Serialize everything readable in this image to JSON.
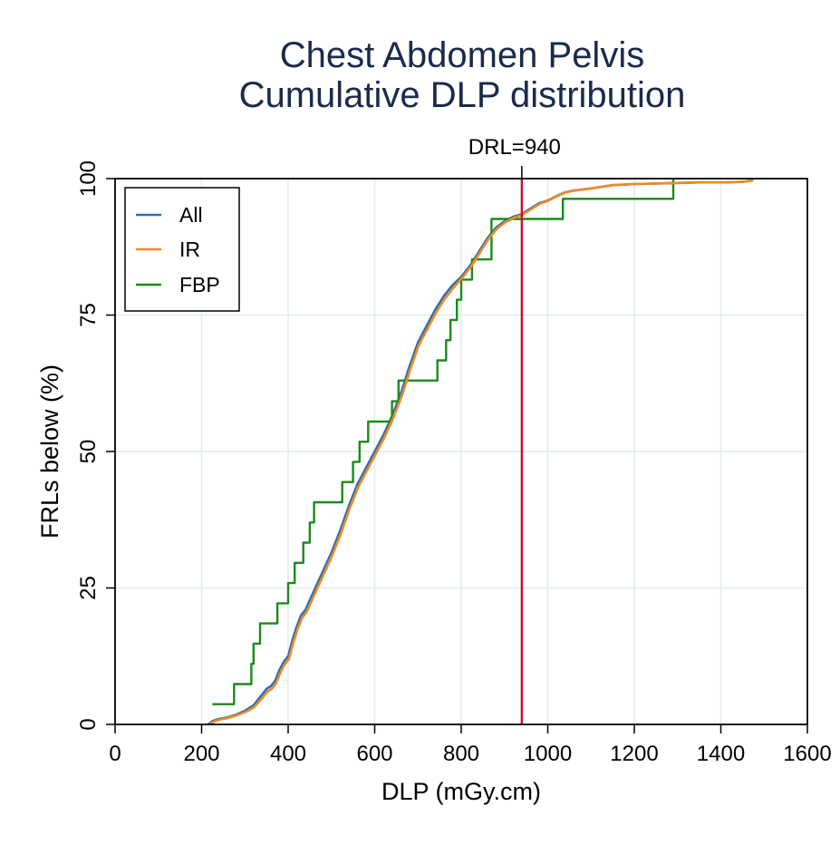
{
  "chart_data": {
    "type": "line",
    "title": [
      "Chest Abdomen Pelvis",
      "Cumulative DLP distribution"
    ],
    "xlabel": "DLP (mGy.cm)",
    "ylabel": "FRLs below (%)",
    "xlim": [
      0,
      1600
    ],
    "ylim": [
      0,
      100
    ],
    "xticks": [
      0,
      200,
      400,
      600,
      800,
      1000,
      1200,
      1400,
      1600
    ],
    "yticks": [
      0,
      25,
      50,
      75,
      100
    ],
    "grid": true,
    "legend_position": "top-left",
    "reference_line": {
      "x": 940,
      "label": "DRL=940",
      "color": "#c8102e"
    },
    "series": [
      {
        "name": "All",
        "color": "#2f6fb0",
        "step": false,
        "x": [
          215,
          225,
          240,
          260,
          280,
          300,
          320,
          340,
          350,
          360,
          370,
          380,
          390,
          400,
          410,
          420,
          430,
          440,
          460,
          480,
          500,
          520,
          540,
          560,
          580,
          600,
          620,
          640,
          660,
          680,
          700,
          720,
          740,
          760,
          780,
          800,
          820,
          840,
          860,
          880,
          900,
          920,
          940,
          960,
          980,
          1000,
          1020,
          1040,
          1060,
          1100,
          1150,
          1200,
          1250,
          1300,
          1350,
          1400,
          1450,
          1475
        ],
        "y": [
          0,
          0.6,
          1,
          1.3,
          1.8,
          2.5,
          3.5,
          5.5,
          6.5,
          7,
          8,
          10,
          11.5,
          12.5,
          15.5,
          18,
          20,
          21,
          24.5,
          28,
          31.5,
          35.5,
          40,
          44,
          47,
          50,
          53,
          56.5,
          60.5,
          65.5,
          70,
          73,
          76,
          78.5,
          80.5,
          82,
          84,
          86.5,
          89,
          91,
          92.2,
          93,
          93.5,
          94.5,
          95.5,
          96,
          96.8,
          97.5,
          97.8,
          98.2,
          98.8,
          99,
          99.1,
          99.2,
          99.3,
          99.3,
          99.4,
          99.7
        ]
      },
      {
        "name": "IR",
        "color": "#f08a24",
        "step": false,
        "x": [
          218,
          228,
          242,
          262,
          282,
          302,
          322,
          342,
          352,
          362,
          372,
          382,
          392,
          402,
          412,
          422,
          432,
          442,
          462,
          482,
          502,
          522,
          542,
          562,
          582,
          602,
          622,
          642,
          662,
          682,
          702,
          722,
          742,
          762,
          782,
          802,
          822,
          842,
          862,
          882,
          902,
          922,
          942,
          962,
          982,
          1002,
          1022,
          1042,
          1062,
          1100,
          1150,
          1200,
          1250,
          1300,
          1350,
          1400,
          1450,
          1475
        ],
        "y": [
          0,
          0.5,
          0.9,
          1.2,
          1.7,
          2.3,
          3.2,
          5,
          6,
          6.5,
          7.5,
          9.5,
          11,
          12,
          15,
          17.5,
          19.5,
          20.5,
          24,
          27.5,
          31,
          35,
          39.5,
          43.5,
          46.5,
          49.5,
          52.5,
          56,
          60,
          65,
          69.5,
          72.5,
          75.5,
          78,
          80,
          81.8,
          83.8,
          86.3,
          88.8,
          90.8,
          92,
          92.8,
          93.4,
          94.4,
          95.4,
          96,
          96.8,
          97.5,
          97.8,
          98.2,
          98.8,
          99,
          99.1,
          99.2,
          99.3,
          99.3,
          99.4,
          99.7
        ]
      },
      {
        "name": "FBP",
        "color": "#1a8a1a",
        "step": true,
        "x": [
          225,
          275,
          315,
          320,
          335,
          375,
          400,
          415,
          435,
          450,
          460,
          480,
          525,
          550,
          565,
          585,
          640,
          655,
          675,
          685,
          745,
          765,
          775,
          790,
          800,
          825,
          840,
          870,
          935,
          1035,
          1290
        ],
        "y": [
          3.7,
          7.4,
          11.1,
          14.8,
          18.5,
          22.2,
          25.9,
          29.6,
          33.3,
          37,
          40.7,
          40.7,
          44.4,
          48.1,
          51.8,
          55.5,
          59.2,
          63,
          63,
          63,
          66.7,
          70.4,
          74.1,
          77.8,
          81.5,
          85.2,
          85.2,
          92.6,
          92.6,
          96.3,
          100
        ]
      }
    ]
  }
}
